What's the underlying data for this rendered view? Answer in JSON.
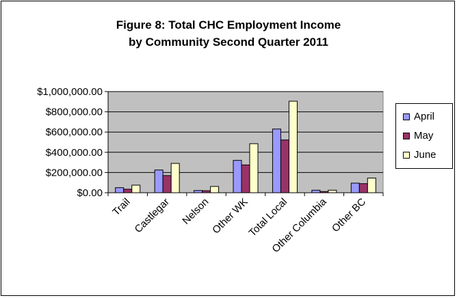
{
  "chart_data": {
    "type": "bar",
    "title_lines": [
      "Figure 8: Total CHC Employment Income",
      "by Community Second Quarter 2011"
    ],
    "categories": [
      "Trail",
      "Castlegar",
      "Nelson",
      "Other WK",
      "Total Local",
      "Other Columbia",
      "Other BC"
    ],
    "series": [
      {
        "name": "April",
        "color": "#9999ff",
        "values": [
          50000,
          225000,
          22000,
          320000,
          630000,
          25000,
          95000
        ]
      },
      {
        "name": "May",
        "color": "#993366",
        "values": [
          35000,
          170000,
          20000,
          275000,
          522000,
          12000,
          90000
        ]
      },
      {
        "name": "June",
        "color": "#ffffcc",
        "values": [
          75000,
          290000,
          62000,
          485000,
          905000,
          25000,
          145000
        ]
      }
    ],
    "yticks": [
      0,
      200000,
      400000,
      600000,
      800000,
      1000000
    ],
    "ytick_labels": [
      "$0.00",
      "$200,000.00",
      "$400,000.00",
      "$600,000.00",
      "$800,000.00",
      "$1,000,000.00"
    ],
    "ylim": [
      0,
      1000000
    ],
    "xlabel": "",
    "ylabel": "",
    "plot_background": "#c0c0c0",
    "grid": true,
    "legend_position": "right"
  }
}
